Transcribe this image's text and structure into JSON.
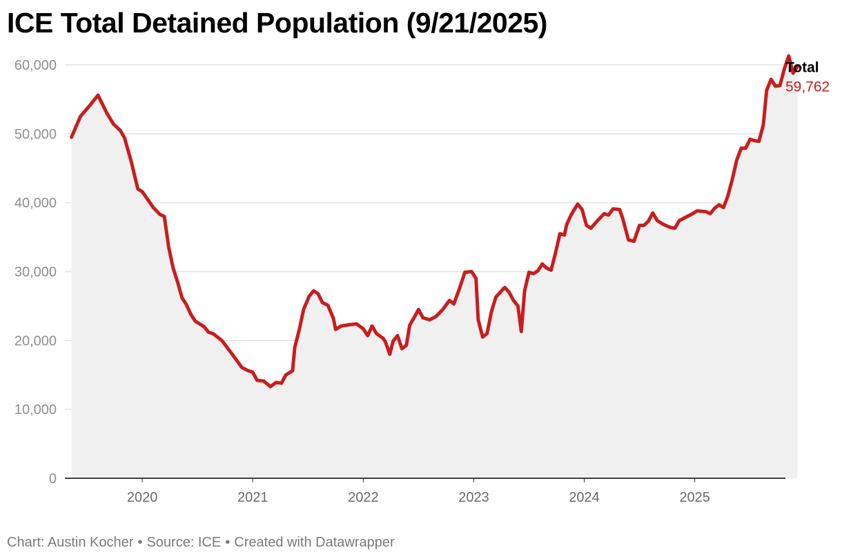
{
  "title": "ICE Total Detained Population (9/21/2025)",
  "footer": {
    "chart_by": "Chart: Austin Kocher",
    "separator": "•",
    "source": "Source: ICE",
    "created_with": "Created with Datawrapper"
  },
  "colors": {
    "line": "#c71e1d",
    "area": "#f0f0f0",
    "grid": "#e2e2e2",
    "baseline": "#000000"
  },
  "chart_data": {
    "type": "area",
    "title": "ICE Total Detained Population (9/21/2025)",
    "xlabel": "",
    "ylabel": "",
    "ylim": [
      0,
      60000
    ],
    "yticks": [
      0,
      10000,
      20000,
      30000,
      40000,
      50000,
      60000
    ],
    "ytick_labels": [
      "0",
      "10,000",
      "20,000",
      "30,000",
      "40,000",
      "50,000",
      "60,000"
    ],
    "xticks": [
      2020,
      2021,
      2022,
      2023,
      2024,
      2025
    ],
    "xtick_labels": [
      "2020",
      "2021",
      "2022",
      "2023",
      "2024",
      "2025"
    ],
    "xlim": [
      2019.3,
      2025.82
    ],
    "grid": true,
    "series": [
      {
        "name": "Total",
        "last_value_label": "59,762",
        "points": [
          [
            2019.36,
            49500
          ],
          [
            2019.44,
            52500
          ],
          [
            2019.52,
            54000
          ],
          [
            2019.6,
            55600
          ],
          [
            2019.68,
            53000
          ],
          [
            2019.74,
            51400
          ],
          [
            2019.8,
            50500
          ],
          [
            2019.84,
            49400
          ],
          [
            2019.9,
            46000
          ],
          [
            2019.96,
            42000
          ],
          [
            2020.0,
            41600
          ],
          [
            2020.1,
            39300
          ],
          [
            2020.16,
            38300
          ],
          [
            2020.2,
            38000
          ],
          [
            2020.24,
            33500
          ],
          [
            2020.28,
            30500
          ],
          [
            2020.32,
            28500
          ],
          [
            2020.36,
            26200
          ],
          [
            2020.4,
            25200
          ],
          [
            2020.44,
            23800
          ],
          [
            2020.48,
            22800
          ],
          [
            2020.56,
            22000
          ],
          [
            2020.6,
            21200
          ],
          [
            2020.64,
            21000
          ],
          [
            2020.72,
            20000
          ],
          [
            2020.8,
            18300
          ],
          [
            2020.86,
            17000
          ],
          [
            2020.9,
            16100
          ],
          [
            2020.96,
            15600
          ],
          [
            2021.0,
            15400
          ],
          [
            2021.04,
            14200
          ],
          [
            2021.1,
            14100
          ],
          [
            2021.16,
            13300
          ],
          [
            2021.21,
            13900
          ],
          [
            2021.26,
            13800
          ],
          [
            2021.3,
            15000
          ],
          [
            2021.36,
            15600
          ],
          [
            2021.38,
            19000
          ],
          [
            2021.42,
            21500
          ],
          [
            2021.46,
            24500
          ],
          [
            2021.51,
            26400
          ],
          [
            2021.55,
            27200
          ],
          [
            2021.59,
            26800
          ],
          [
            2021.63,
            25500
          ],
          [
            2021.68,
            25100
          ],
          [
            2021.73,
            23200
          ],
          [
            2021.75,
            21600
          ],
          [
            2021.8,
            22100
          ],
          [
            2021.88,
            22300
          ],
          [
            2021.94,
            22400
          ],
          [
            2022.0,
            21700
          ],
          [
            2022.04,
            20700
          ],
          [
            2022.08,
            22100
          ],
          [
            2022.12,
            21000
          ],
          [
            2022.18,
            20300
          ],
          [
            2022.2,
            19800
          ],
          [
            2022.24,
            18000
          ],
          [
            2022.27,
            19900
          ],
          [
            2022.31,
            20700
          ],
          [
            2022.35,
            18800
          ],
          [
            2022.39,
            19300
          ],
          [
            2022.42,
            22200
          ],
          [
            2022.47,
            23600
          ],
          [
            2022.5,
            24500
          ],
          [
            2022.54,
            23300
          ],
          [
            2022.6,
            23000
          ],
          [
            2022.66,
            23500
          ],
          [
            2022.72,
            24500
          ],
          [
            2022.78,
            25800
          ],
          [
            2022.82,
            25300
          ],
          [
            2022.87,
            27500
          ],
          [
            2022.92,
            29900
          ],
          [
            2022.98,
            30000
          ],
          [
            2023.02,
            29000
          ],
          [
            2023.04,
            23000
          ],
          [
            2023.08,
            20500
          ],
          [
            2023.12,
            21000
          ],
          [
            2023.16,
            24200
          ],
          [
            2023.2,
            26300
          ],
          [
            2023.24,
            27000
          ],
          [
            2023.28,
            27700
          ],
          [
            2023.32,
            27000
          ],
          [
            2023.36,
            25800
          ],
          [
            2023.4,
            25000
          ],
          [
            2023.43,
            21300
          ],
          [
            2023.46,
            27200
          ],
          [
            2023.5,
            29900
          ],
          [
            2023.54,
            29700
          ],
          [
            2023.58,
            30100
          ],
          [
            2023.62,
            31100
          ],
          [
            2023.66,
            30500
          ],
          [
            2023.7,
            30200
          ],
          [
            2023.74,
            32700
          ],
          [
            2023.78,
            35500
          ],
          [
            2023.82,
            35300
          ],
          [
            2023.84,
            36800
          ],
          [
            2023.88,
            38200
          ],
          [
            2023.94,
            39800
          ],
          [
            2023.98,
            39000
          ],
          [
            2024.02,
            36700
          ],
          [
            2024.06,
            36300
          ],
          [
            2024.12,
            37400
          ],
          [
            2024.18,
            38400
          ],
          [
            2024.22,
            38200
          ],
          [
            2024.26,
            39100
          ],
          [
            2024.32,
            39000
          ],
          [
            2024.35,
            37600
          ],
          [
            2024.4,
            34600
          ],
          [
            2024.45,
            34400
          ],
          [
            2024.5,
            36700
          ],
          [
            2024.54,
            36700
          ],
          [
            2024.58,
            37300
          ],
          [
            2024.62,
            38500
          ],
          [
            2024.66,
            37400
          ],
          [
            2024.72,
            36800
          ],
          [
            2024.78,
            36400
          ],
          [
            2024.82,
            36300
          ],
          [
            2024.86,
            37400
          ],
          [
            2024.92,
            37900
          ],
          [
            2024.98,
            38400
          ],
          [
            2025.02,
            38800
          ],
          [
            2025.1,
            38700
          ],
          [
            2025.14,
            38400
          ],
          [
            2025.18,
            39200
          ],
          [
            2025.22,
            39700
          ],
          [
            2025.26,
            39300
          ],
          [
            2025.3,
            41000
          ],
          [
            2025.34,
            43400
          ],
          [
            2025.38,
            46200
          ],
          [
            2025.42,
            47900
          ],
          [
            2025.46,
            47900
          ],
          [
            2025.5,
            49200
          ],
          [
            2025.54,
            49000
          ],
          [
            2025.58,
            48900
          ],
          [
            2025.62,
            51300
          ],
          [
            2025.65,
            56300
          ],
          [
            2025.69,
            57900
          ],
          [
            2025.73,
            56900
          ],
          [
            2025.77,
            57000
          ],
          [
            2025.81,
            59400
          ],
          [
            2025.85,
            61300
          ],
          [
            2025.89,
            58800
          ],
          [
            2025.93,
            59762
          ]
        ]
      }
    ]
  }
}
